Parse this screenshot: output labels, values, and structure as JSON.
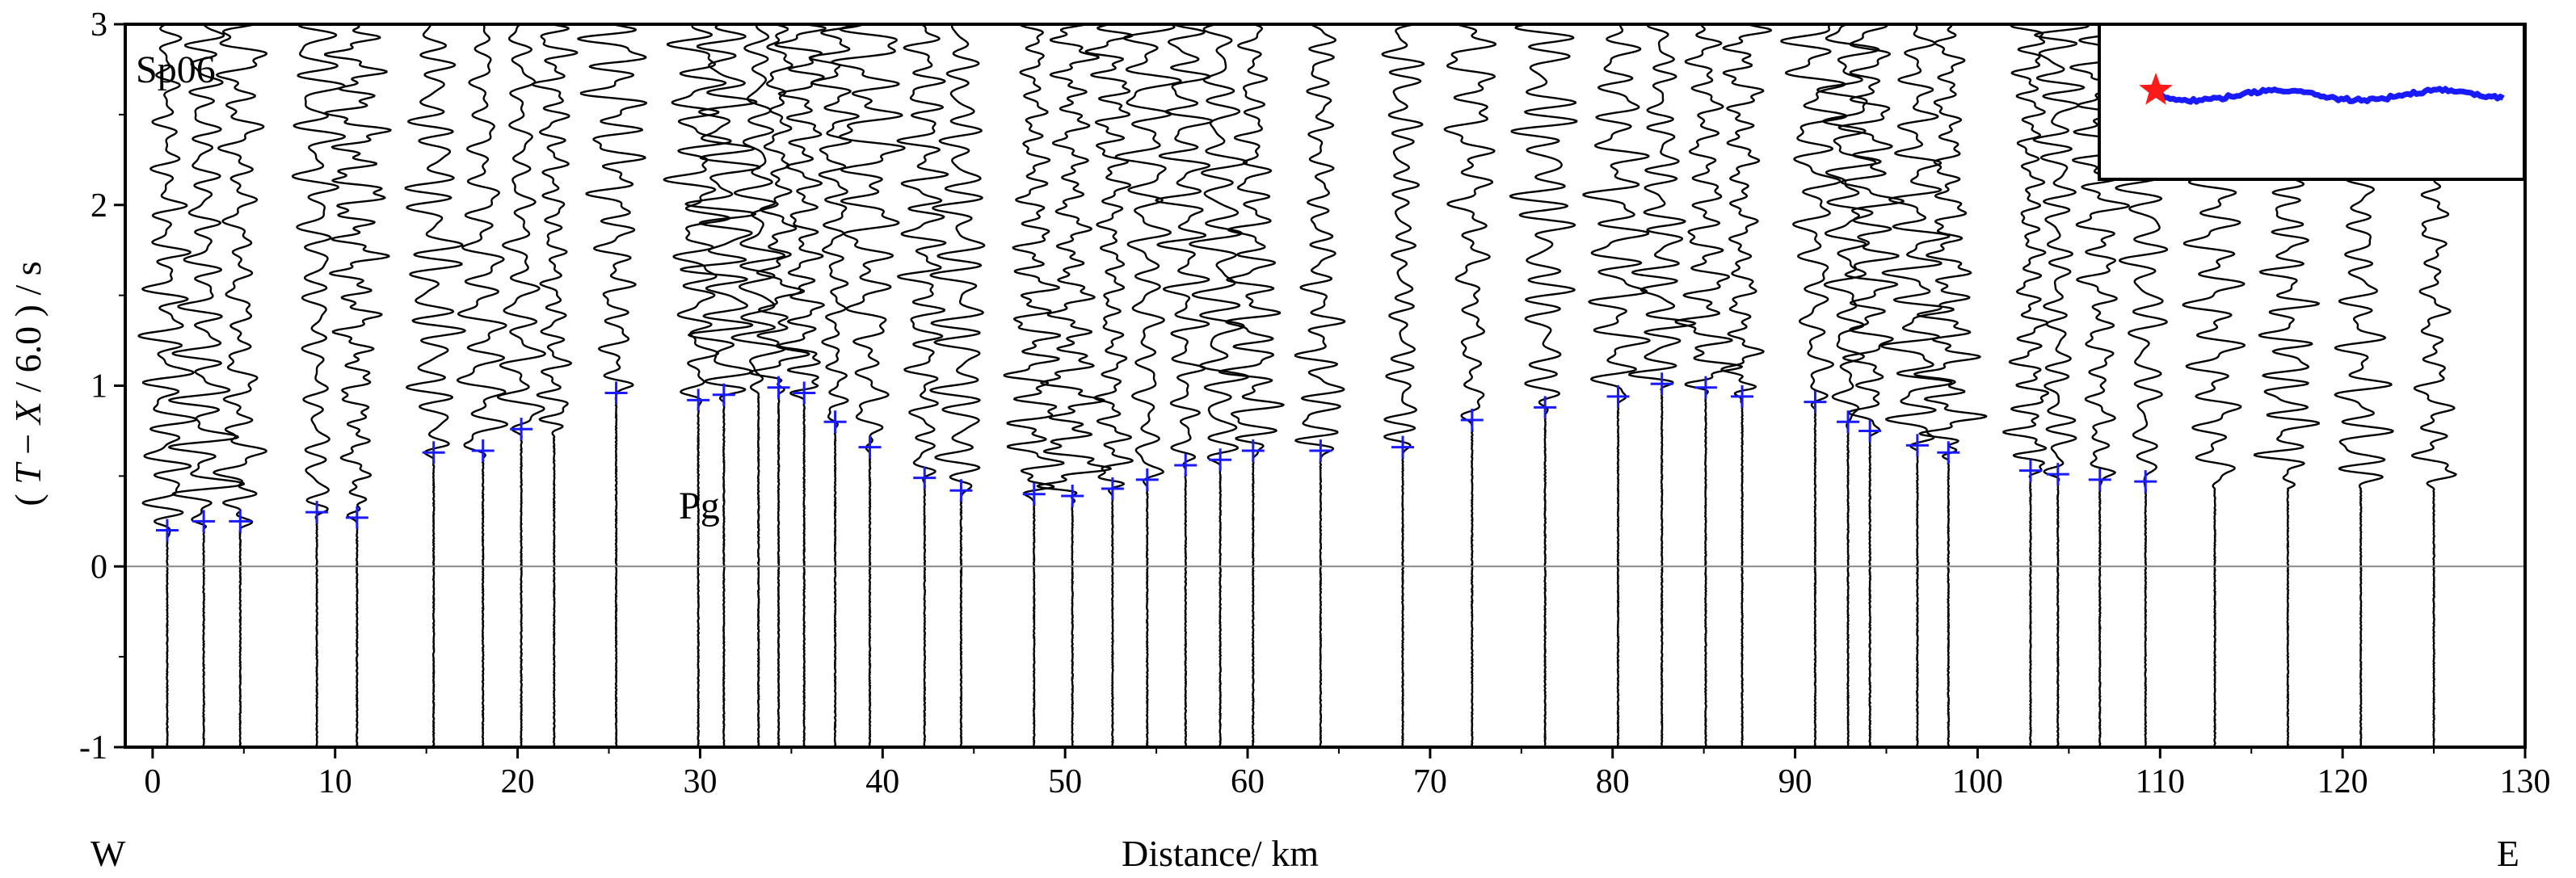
{
  "chart_data": {
    "type": "seismic_record_section",
    "title": "",
    "xlabel": "Distance/ km",
    "ylabel_parts": [
      "( ",
      "T",
      " − ",
      "X",
      " / 6.0 ) / s"
    ],
    "xlim": [
      -1.5,
      130
    ],
    "ylim": [
      -1,
      3
    ],
    "xticks": [
      0,
      10,
      20,
      30,
      40,
      50,
      60,
      70,
      80,
      90,
      100,
      110,
      120,
      130
    ],
    "yticks": [
      -1,
      0,
      1,
      2,
      3
    ],
    "reduction_velocity_km_s": 6.0,
    "zero_line": true,
    "annotations": {
      "shot_label": "Sp06",
      "phase_label": "Pg",
      "west_label": "W",
      "east_label": "E"
    },
    "trace_distances_km": [
      0.8,
      2.8,
      4.8,
      9.0,
      11.2,
      15.4,
      18.1,
      20.2,
      22.0,
      25.4,
      29.9,
      31.3,
      33.2,
      34.3,
      35.7,
      37.4,
      39.3,
      42.3,
      44.3,
      48.3,
      50.4,
      52.6,
      54.5,
      56.6,
      58.5,
      60.3,
      64.0,
      68.5,
      72.3,
      76.3,
      80.3,
      82.7,
      85.1,
      87.1,
      91.1,
      92.9,
      94.1,
      96.7,
      98.4,
      102.9,
      104.4,
      106.7,
      109.2,
      113.0,
      117.0,
      121.0,
      125.0
    ],
    "series": [
      {
        "name": "Pg",
        "marker": "+",
        "color": "#1a1aff",
        "x": [
          0.8,
          2.8,
          4.8,
          9.0,
          11.2,
          15.4,
          18.1,
          20.2,
          25.4,
          29.9,
          31.3,
          34.3,
          35.7,
          37.4,
          39.3,
          42.3,
          44.3,
          48.3,
          50.4,
          52.6,
          54.5,
          56.6,
          58.5,
          60.3,
          64.0,
          68.5,
          72.3,
          76.3,
          80.3,
          82.7,
          85.1,
          87.1,
          91.1,
          92.9,
          94.1,
          96.7,
          98.4,
          102.9,
          104.4,
          106.7,
          109.2
        ],
        "y": [
          0.2,
          0.25,
          0.25,
          0.3,
          0.27,
          0.63,
          0.64,
          0.76,
          0.96,
          0.92,
          0.95,
          0.99,
          0.96,
          0.8,
          0.66,
          0.49,
          0.42,
          0.4,
          0.39,
          0.43,
          0.48,
          0.56,
          0.59,
          0.64,
          0.64,
          0.66,
          0.81,
          0.88,
          0.94,
          1.01,
          0.99,
          0.94,
          0.91,
          0.8,
          0.75,
          0.67,
          0.63,
          0.53,
          0.51,
          0.48,
          0.47
        ]
      }
    ],
    "inset_map": {
      "star_color": "#ff1a1a",
      "line_color": "#1a1aff"
    }
  }
}
